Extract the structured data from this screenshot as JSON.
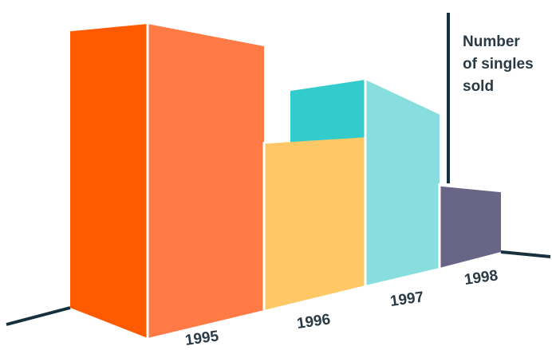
{
  "chart_data": {
    "type": "bar",
    "categories": [
      "1995",
      "1996",
      "1997",
      "1998"
    ],
    "values": [
      100,
      53,
      66,
      20
    ],
    "ylabel": [
      "Number",
      "of singles",
      "sold"
    ],
    "xlabel": "",
    "grid": false,
    "legend": "none",
    "value_scale": "relative, axis has no printed ticks",
    "colors": {
      "1995": {
        "front": "#ff5a00",
        "side": "#ff7a45"
      },
      "1996": {
        "front": "#ffc866",
        "back": "#33cccc"
      },
      "1997": {
        "side": "#88dede"
      },
      "1998": {
        "front": "#686586"
      },
      "axis": "#16303d"
    }
  }
}
